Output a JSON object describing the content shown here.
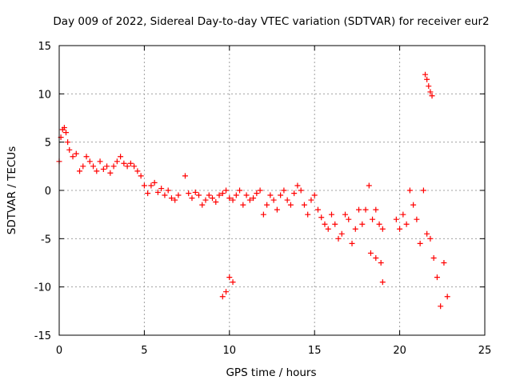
{
  "chart_data": {
    "type": "scatter",
    "title": "Day 009 of 2022, Sidereal Day-to-day VTEC variation (SDTVAR) for receiver eur2",
    "xlabel": "GPS time / hours",
    "ylabel": "SDTVAR / TECUs",
    "xlim": [
      0,
      25
    ],
    "ylim": [
      -15,
      15
    ],
    "grid": true,
    "marker": "+",
    "series": [
      {
        "name": "SDTVAR",
        "color": "#ff0000",
        "x": [
          0.0,
          0.1,
          0.2,
          0.3,
          0.4,
          0.5,
          0.6,
          0.8,
          1.0,
          1.2,
          1.4,
          1.6,
          1.8,
          2.0,
          2.2,
          2.4,
          2.6,
          2.8,
          3.0,
          3.2,
          3.4,
          3.6,
          3.8,
          4.0,
          4.2,
          4.4,
          4.6,
          4.8,
          5.0,
          5.2,
          5.4,
          5.6,
          5.8,
          6.0,
          6.2,
          6.4,
          6.6,
          6.8,
          7.0,
          7.4,
          7.6,
          7.8,
          8.0,
          8.2,
          8.4,
          8.6,
          8.8,
          9.0,
          9.2,
          9.4,
          9.6,
          9.8,
          10.0,
          10.2,
          10.4,
          10.6,
          10.8,
          11.0,
          11.2,
          11.4,
          11.6,
          11.8,
          12.0,
          12.2,
          12.4,
          12.6,
          12.8,
          13.0,
          13.2,
          13.4,
          13.6,
          13.8,
          14.0,
          14.2,
          14.4,
          14.6,
          14.8,
          15.0,
          15.2,
          15.4,
          15.6,
          15.8,
          16.0,
          16.2,
          16.4,
          16.6,
          16.8,
          17.0,
          17.2,
          17.4,
          17.6,
          17.8,
          18.0,
          18.2,
          18.4,
          18.6,
          18.8,
          19.0,
          19.8,
          20.0,
          20.2,
          20.4,
          20.6,
          20.8,
          21.0,
          21.2,
          21.4,
          21.6,
          21.8,
          22.0,
          22.2,
          22.4,
          22.6,
          22.8,
          9.6,
          9.8,
          10.0,
          10.2,
          21.5,
          21.6,
          21.7,
          21.8,
          21.9,
          18.3,
          18.6,
          18.9,
          19.0
        ],
        "y": [
          3.0,
          5.5,
          6.3,
          6.5,
          6.0,
          5.0,
          4.2,
          3.5,
          3.8,
          2.0,
          2.5,
          3.5,
          3.0,
          2.5,
          2.0,
          3.0,
          2.2,
          2.5,
          1.8,
          2.5,
          3.0,
          3.5,
          2.8,
          2.5,
          2.8,
          2.5,
          2.0,
          1.5,
          0.5,
          -0.3,
          0.5,
          0.8,
          -0.2,
          0.2,
          -0.5,
          0.0,
          -0.8,
          -1.0,
          -0.5,
          1.5,
          -0.3,
          -0.8,
          -0.2,
          -0.5,
          -1.5,
          -1.0,
          -0.5,
          -0.8,
          -1.2,
          -0.5,
          -0.3,
          0.0,
          -0.8,
          -1.0,
          -0.5,
          0.0,
          -1.5,
          -0.5,
          -1.0,
          -0.8,
          -0.3,
          0.0,
          -2.5,
          -1.5,
          -0.5,
          -1.0,
          -2.0,
          -0.5,
          0.0,
          -1.0,
          -1.5,
          -0.3,
          0.5,
          0.0,
          -1.5,
          -2.5,
          -1.0,
          -0.5,
          -2.0,
          -2.8,
          -3.5,
          -4.0,
          -2.5,
          -3.5,
          -5.0,
          -4.5,
          -2.5,
          -3.0,
          -5.5,
          -4.0,
          -2.0,
          -3.5,
          -2.0,
          0.5,
          -3.0,
          -2.0,
          -3.5,
          -4.0,
          -3.0,
          -4.0,
          -2.5,
          -3.5,
          0.0,
          -1.5,
          -3.0,
          -5.5,
          0.0,
          -4.5,
          -5.0,
          -7.0,
          -9.0,
          -12.0,
          -7.5,
          -11.0,
          -11.0,
          -10.5,
          -9.0,
          -9.5,
          12.0,
          11.5,
          10.8,
          10.2,
          9.8,
          -6.5,
          -7.0,
          -7.5,
          -9.5
        ]
      }
    ],
    "xticks": [
      "0",
      "5",
      "10",
      "15",
      "20",
      "25"
    ],
    "yticks": [
      "15",
      "10",
      "5",
      "0",
      "-5",
      "-10",
      "-15"
    ]
  }
}
